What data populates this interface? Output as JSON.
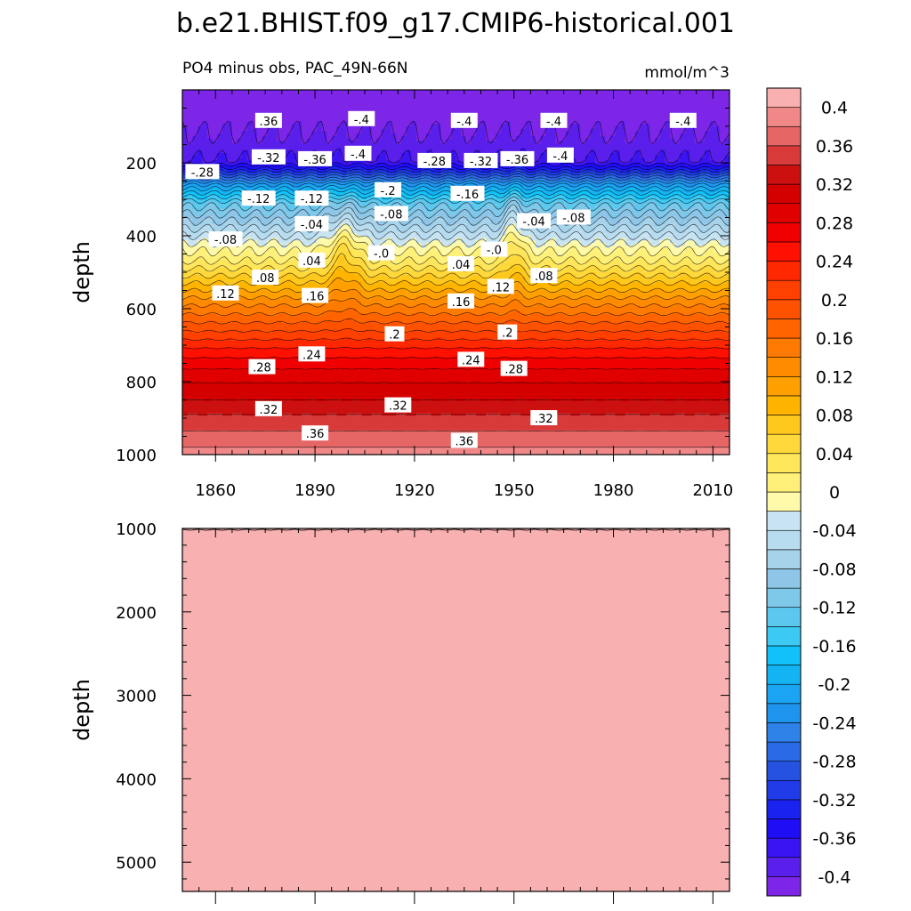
{
  "figure": {
    "title": "b.e21.BHIST.f09_g17.CMIP6-historical.001",
    "left_subtitle": "PO4 minus obs, PAC_49N-66N",
    "right_subtitle": "mmol/m^3"
  },
  "chart_data": [
    {
      "type": "contour",
      "panel": "upper",
      "variable": "PO4 minus obs",
      "region": "PAC_49N-66N",
      "units": "mmol/m^3",
      "xlabel": "",
      "ylabel": "depth",
      "xlim": [
        1850,
        2015
      ],
      "ylim": [
        1000,
        0
      ],
      "xticks": [
        1860,
        1890,
        1920,
        1950,
        1980,
        2010
      ],
      "yticks": [
        200,
        400,
        600,
        800,
        1000
      ],
      "depth_profile": [
        {
          "depth": 0,
          "value": -0.44
        },
        {
          "depth": 50,
          "value": -0.41
        },
        {
          "depth": 120,
          "value": -0.4
        },
        {
          "depth": 195,
          "value": -0.38
        },
        {
          "depth": 215,
          "value": -0.34
        },
        {
          "depth": 260,
          "value": -0.22
        },
        {
          "depth": 310,
          "value": -0.13
        },
        {
          "depth": 370,
          "value": -0.07
        },
        {
          "depth": 430,
          "value": -0.01
        },
        {
          "depth": 470,
          "value": 0.02
        },
        {
          "depth": 520,
          "value": 0.07
        },
        {
          "depth": 580,
          "value": 0.13
        },
        {
          "depth": 650,
          "value": 0.19
        },
        {
          "depth": 720,
          "value": 0.25
        },
        {
          "depth": 780,
          "value": 0.29
        },
        {
          "depth": 850,
          "value": 0.32
        },
        {
          "depth": 910,
          "value": 0.35
        },
        {
          "depth": 960,
          "value": 0.37
        },
        {
          "depth": 1000,
          "value": 0.39
        }
      ],
      "contour_labels": [
        {
          "text": ".36",
          "year": 1876,
          "depth": 85
        },
        {
          "text": "-.4",
          "year": 1904,
          "depth": 80
        },
        {
          "text": "-.4",
          "year": 1935,
          "depth": 85
        },
        {
          "text": "-.4",
          "year": 1962,
          "depth": 85
        },
        {
          "text": "-.4",
          "year": 2001,
          "depth": 85
        },
        {
          "text": "-.28",
          "year": 1856,
          "depth": 225
        },
        {
          "text": "-.32",
          "year": 1876,
          "depth": 185
        },
        {
          "text": "-.36",
          "year": 1890,
          "depth": 190
        },
        {
          "text": "-.4",
          "year": 1903,
          "depth": 175
        },
        {
          "text": "-.28",
          "year": 1926,
          "depth": 195
        },
        {
          "text": "-.32",
          "year": 1940,
          "depth": 195
        },
        {
          "text": "-.36",
          "year": 1951,
          "depth": 190
        },
        {
          "text": "-.4",
          "year": 1964,
          "depth": 180
        },
        {
          "text": "-.12",
          "year": 1873,
          "depth": 298
        },
        {
          "text": "-.12",
          "year": 1889,
          "depth": 298
        },
        {
          "text": "-.2",
          "year": 1912,
          "depth": 275
        },
        {
          "text": "-.16",
          "year": 1936,
          "depth": 285
        },
        {
          "text": "-.08",
          "year": 1968,
          "depth": 350
        },
        {
          "text": "-.04",
          "year": 1889,
          "depth": 368
        },
        {
          "text": "-.08",
          "year": 1913,
          "depth": 340
        },
        {
          "text": "-.04",
          "year": 1956,
          "depth": 360
        },
        {
          "text": "-.08",
          "year": 1863,
          "depth": 410
        },
        {
          "text": "-.0",
          "year": 1910,
          "depth": 448
        },
        {
          "text": "-.0",
          "year": 1944,
          "depth": 438
        },
        {
          "text": ".04",
          "year": 1889,
          "depth": 468
        },
        {
          "text": ".04",
          "year": 1934,
          "depth": 478
        },
        {
          "text": ".08",
          "year": 1875,
          "depth": 515
        },
        {
          "text": ".08",
          "year": 1959,
          "depth": 510
        },
        {
          "text": ".12",
          "year": 1863,
          "depth": 558
        },
        {
          "text": ".12",
          "year": 1946,
          "depth": 540
        },
        {
          "text": ".16",
          "year": 1890,
          "depth": 565
        },
        {
          "text": ".16",
          "year": 1934,
          "depth": 580
        },
        {
          "text": ".2",
          "year": 1914,
          "depth": 670
        },
        {
          "text": ".2",
          "year": 1948,
          "depth": 665
        },
        {
          "text": ".24",
          "year": 1889,
          "depth": 725
        },
        {
          "text": ".24",
          "year": 1937,
          "depth": 740
        },
        {
          "text": ".28",
          "year": 1874,
          "depth": 760
        },
        {
          "text": ".28",
          "year": 1950,
          "depth": 765
        },
        {
          "text": ".32",
          "year": 1876,
          "depth": 875
        },
        {
          "text": ".32",
          "year": 1915,
          "depth": 865
        },
        {
          "text": ".32",
          "year": 1959,
          "depth": 900
        },
        {
          "text": ".36",
          "year": 1890,
          "depth": 942
        },
        {
          "text": ".36",
          "year": 1935,
          "depth": 962
        }
      ]
    },
    {
      "type": "contour",
      "panel": "lower",
      "variable": "PO4 minus obs",
      "units": "mmol/m^3",
      "xlabel": "",
      "ylabel": "depth",
      "xlim": [
        1850,
        2015
      ],
      "ylim": [
        5350,
        1000
      ],
      "yticks": [
        1000,
        2000,
        3000,
        4000,
        5000
      ],
      "fill_value": 0.42
    },
    {
      "type": "colorbar",
      "levels": [
        -0.42,
        -0.4,
        -0.38,
        -0.36,
        -0.34,
        -0.32,
        -0.3,
        -0.28,
        -0.26,
        -0.24,
        -0.22,
        -0.2,
        -0.18,
        -0.16,
        -0.14,
        -0.12,
        -0.1,
        -0.08,
        -0.06,
        -0.04,
        -0.02,
        0,
        0.02,
        0.04,
        0.06,
        0.08,
        0.1,
        0.12,
        0.14,
        0.16,
        0.18,
        0.2,
        0.22,
        0.24,
        0.26,
        0.28,
        0.3,
        0.32,
        0.34,
        0.36,
        0.38,
        0.4,
        0.42
      ],
      "tick_labels": [
        "-0.4",
        "-0.36",
        "-0.32",
        "-0.28",
        "-0.24",
        "-0.2",
        "-0.16",
        "-0.12",
        "-0.08",
        "-0.04",
        "0",
        "0.04",
        "0.08",
        "0.12",
        "0.16",
        "0.2",
        "0.24",
        "0.28",
        "0.32",
        "0.36",
        "0.4"
      ],
      "tick_values": [
        -0.4,
        -0.36,
        -0.32,
        -0.28,
        -0.24,
        -0.2,
        -0.16,
        -0.12,
        -0.08,
        -0.04,
        0,
        0.04,
        0.08,
        0.12,
        0.16,
        0.2,
        0.24,
        0.28,
        0.32,
        0.36,
        0.4
      ],
      "colors": [
        "#7d26e8",
        "#5a1fea",
        "#3a14f2",
        "#1f0df5",
        "#1a22f0",
        "#1f3ce8",
        "#2552e0",
        "#2a6ae4",
        "#2f82e8",
        "#1f94ee",
        "#1aa4f2",
        "#14b4f4",
        "#10c2f7",
        "#3ccaf4",
        "#5cc8ee",
        "#7ec8ea",
        "#8fc6e8",
        "#a6d2ea",
        "#b8dcef",
        "#c8e4f2",
        "#fffaaa",
        "#fff07a",
        "#ffe65a",
        "#ffd83c",
        "#ffc81c",
        "#ffb400",
        "#ffa000",
        "#ff8c00",
        "#ff7a00",
        "#ff6400",
        "#ff5200",
        "#ff4000",
        "#ff2800",
        "#ff1000",
        "#f00000",
        "#e00000",
        "#d40000",
        "#cc1010",
        "#d83a3a",
        "#e66666",
        "#f08888",
        "#f8b0b0"
      ]
    }
  ]
}
